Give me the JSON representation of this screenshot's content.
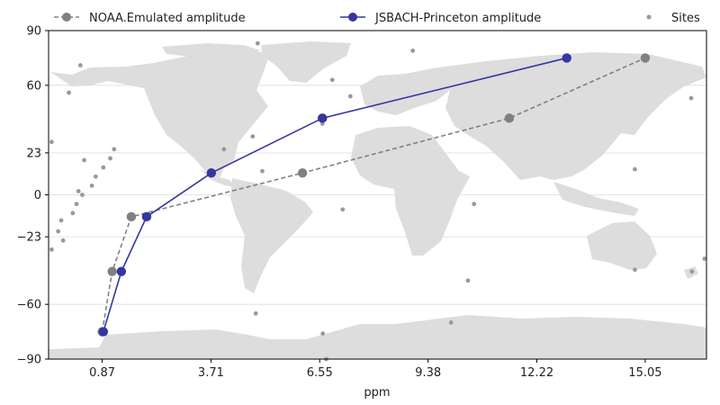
{
  "chart_data": {
    "type": "line",
    "xlabel": "ppm",
    "ylabel": "",
    "xlim": [
      -0.53,
      16.65
    ],
    "ylim": [
      -90,
      90
    ],
    "xticks": [
      "0.87",
      "3.71",
      "6.55",
      "9.38",
      "12.22",
      "15.05"
    ],
    "xtick_values": [
      0.87,
      3.71,
      6.55,
      9.38,
      12.22,
      15.05
    ],
    "yticks": [
      "90",
      "60",
      "23",
      "0",
      "−23",
      "−60",
      "−90"
    ],
    "ytick_values": [
      90,
      60,
      23,
      0,
      -23,
      -60,
      -90
    ],
    "grid": "horizontal",
    "legend_placement": "top",
    "background": "world-map",
    "series": [
      {
        "name": "NOAA.Emulated amplitude",
        "color": "#808080",
        "style": "dashed",
        "points": [
          {
            "x": 0.87,
            "y": -75
          },
          {
            "x": 1.13,
            "y": -42
          },
          {
            "x": 1.63,
            "y": -12
          },
          {
            "x": 6.1,
            "y": 12
          },
          {
            "x": 11.5,
            "y": 42
          },
          {
            "x": 15.05,
            "y": 75
          }
        ]
      },
      {
        "name": "JSBACH-Princeton amplitude",
        "color": "#3535a3",
        "style": "solid",
        "points": [
          {
            "x": 0.9,
            "y": -75
          },
          {
            "x": 1.37,
            "y": -42
          },
          {
            "x": 2.03,
            "y": -12
          },
          {
            "x": 3.72,
            "y": 12
          },
          {
            "x": 6.62,
            "y": 42
          },
          {
            "x": 13.0,
            "y": 75
          }
        ]
      }
    ],
    "sites": {
      "name": "Sites",
      "color": "#999999",
      "points": [
        {
          "x": -0.45,
          "y": 29
        },
        {
          "x": -0.45,
          "y": -30
        },
        {
          "x": -0.28,
          "y": -20
        },
        {
          "x": -0.2,
          "y": -14
        },
        {
          "x": -0.15,
          "y": -25
        },
        {
          "x": 0.0,
          "y": 56
        },
        {
          "x": 0.1,
          "y": -10
        },
        {
          "x": 0.2,
          "y": -5
        },
        {
          "x": 0.25,
          "y": 2
        },
        {
          "x": 0.35,
          "y": 0
        },
        {
          "x": 0.4,
          "y": 19
        },
        {
          "x": 0.3,
          "y": 71
        },
        {
          "x": 0.6,
          "y": 5
        },
        {
          "x": 0.7,
          "y": 10
        },
        {
          "x": 0.9,
          "y": 15
        },
        {
          "x": 1.08,
          "y": 20
        },
        {
          "x": 1.18,
          "y": 25
        },
        {
          "x": 4.05,
          "y": 25
        },
        {
          "x": 4.8,
          "y": 32
        },
        {
          "x": 4.93,
          "y": 83
        },
        {
          "x": 5.05,
          "y": 13
        },
        {
          "x": 4.88,
          "y": -65
        },
        {
          "x": 6.62,
          "y": 39
        },
        {
          "x": 6.88,
          "y": 63
        },
        {
          "x": 7.15,
          "y": -8
        },
        {
          "x": 7.35,
          "y": 54
        },
        {
          "x": 8.98,
          "y": 79
        },
        {
          "x": 10.42,
          "y": -47
        },
        {
          "x": 10.58,
          "y": -5
        },
        {
          "x": 9.98,
          "y": -70
        },
        {
          "x": 6.63,
          "y": -76
        },
        {
          "x": 6.72,
          "y": -90
        },
        {
          "x": 14.78,
          "y": 14
        },
        {
          "x": 14.78,
          "y": -41
        },
        {
          "x": 16.25,
          "y": 53
        },
        {
          "x": 16.27,
          "y": -42
        },
        {
          "x": 16.6,
          "y": -35
        }
      ]
    }
  }
}
